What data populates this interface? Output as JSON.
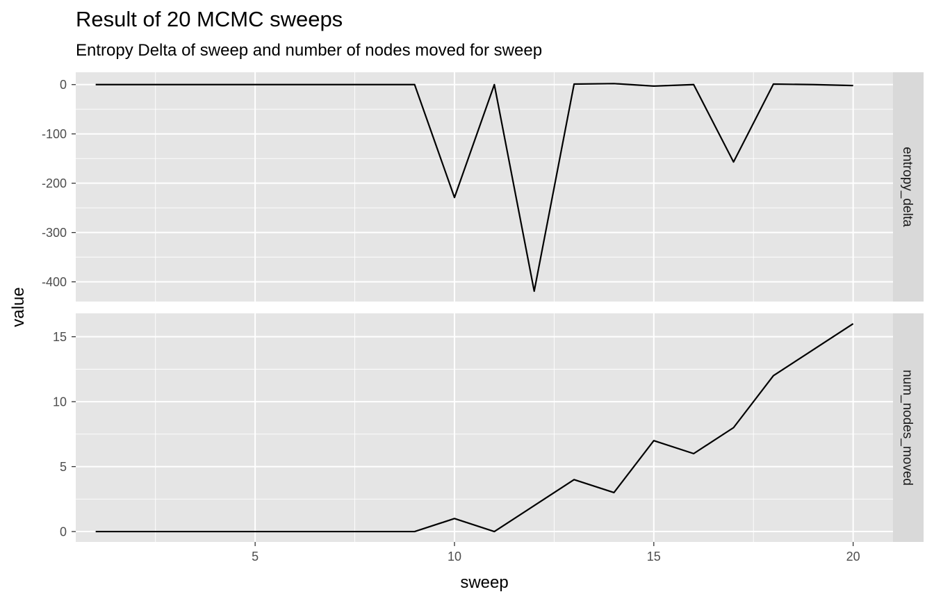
{
  "chart_data": {
    "type": "line",
    "title": "Result of 20 MCMC sweeps",
    "subtitle": "Entropy Delta of sweep and number of nodes moved for sweep",
    "xlabel": "sweep",
    "ylabel": "value",
    "xlim": [
      0.5,
      21
    ],
    "x_ticks": [
      5,
      10,
      15,
      20
    ],
    "x": [
      1,
      2,
      3,
      4,
      5,
      6,
      7,
      8,
      9,
      10,
      11,
      12,
      13,
      14,
      15,
      16,
      17,
      18,
      19,
      20
    ],
    "grid": true,
    "facets": [
      {
        "name": "entropy_delta",
        "ylim": [
          -440,
          25
        ],
        "y_ticks": [
          0,
          -100,
          -200,
          -300,
          -400
        ],
        "y_tick_labels": [
          "0",
          "-100",
          "-200",
          "-300",
          "-400"
        ],
        "values": [
          0,
          0,
          0,
          0,
          0,
          0,
          0,
          0,
          0,
          -229,
          0,
          -419,
          1,
          2,
          -3,
          0,
          -157,
          1,
          0,
          -2
        ]
      },
      {
        "name": "num_nodes_moved",
        "ylim": [
          -0.8,
          16.8
        ],
        "y_ticks": [
          0,
          5,
          10,
          15
        ],
        "y_tick_labels": [
          "0",
          "5",
          "10",
          "15"
        ],
        "values": [
          0,
          0,
          0,
          0,
          0,
          0,
          0,
          0,
          0,
          1,
          0,
          2,
          4,
          3,
          7,
          6,
          8,
          12,
          14,
          16
        ]
      }
    ]
  }
}
